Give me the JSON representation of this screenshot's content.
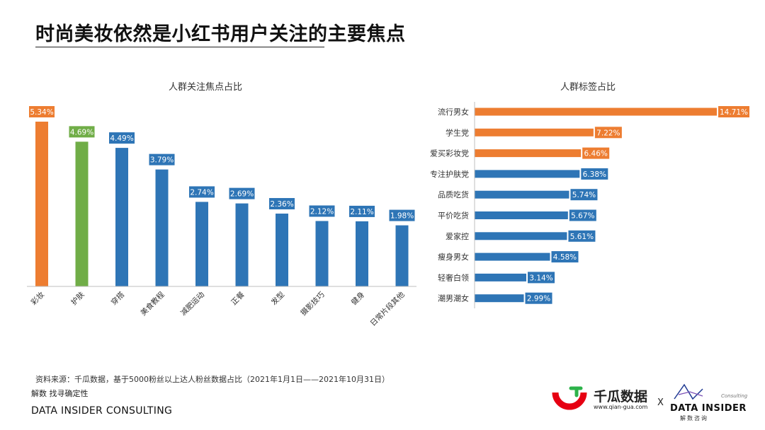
{
  "page": {
    "title": "时尚美妆依然是小红书用户关注的主要焦点"
  },
  "chart_data": [
    {
      "type": "bar",
      "title": "人群关注焦点占比",
      "categories": [
        "彩妆",
        "护肤",
        "穿搭",
        "美食教程",
        "减肥运动",
        "正餐",
        "发型",
        "摄影技巧",
        "健身",
        "日常片段其他"
      ],
      "values": [
        5.34,
        4.69,
        4.49,
        3.79,
        2.74,
        2.69,
        2.36,
        2.12,
        2.11,
        1.98
      ],
      "value_labels": [
        "5.34%",
        "4.69%",
        "4.49%",
        "3.79%",
        "2.74%",
        "2.69%",
        "2.36%",
        "2.12%",
        "2.11%",
        "1.98%"
      ],
      "colors": [
        "#ED7D31",
        "#70AD47",
        "#2E75B6",
        "#2E75B6",
        "#2E75B6",
        "#2E75B6",
        "#2E75B6",
        "#2E75B6",
        "#2E75B6",
        "#2E75B6"
      ],
      "unit": "%",
      "ylim": [
        0,
        5.5
      ],
      "grid": false
    },
    {
      "type": "bar",
      "orientation": "horizontal",
      "title": "人群标签占比",
      "categories": [
        "流行男女",
        "学生党",
        "爱买彩妆党",
        "专注护肤党",
        "品质吃货",
        "平价吃货",
        "爱家控",
        "瘦身男女",
        "轻奢白领",
        "潮男潮女"
      ],
      "values": [
        14.71,
        7.22,
        6.46,
        6.38,
        5.74,
        5.67,
        5.61,
        4.58,
        3.14,
        2.99
      ],
      "value_labels": [
        "14.71%",
        "7.22%",
        "6.46%",
        "6.38%",
        "5.74%",
        "5.67%",
        "5.61%",
        "4.58%",
        "3.14%",
        "2.99%"
      ],
      "colors": [
        "#ED7D31",
        "#ED7D31",
        "#ED7D31",
        "#2E75B6",
        "#2E75B6",
        "#2E75B6",
        "#2E75B6",
        "#2E75B6",
        "#2E75B6",
        "#2E75B6"
      ],
      "unit": "%",
      "xlim": [
        0,
        14.71
      ],
      "grid": false
    }
  ],
  "footer": {
    "source": "资料来源：千瓜数据，基于5000粉丝以上达人粉丝数据占比（2021年1月1日——2021年10月31日）",
    "tagline": "解数 找寻确定性",
    "company": "DATA INSIDER CONSULTING"
  },
  "logos": {
    "qiangua_name": "千瓜数据",
    "qiangua_url": "www.qian-gua.com",
    "separator": "X",
    "di_consulting": "Consulting",
    "di_name": "DATA INSIDER",
    "di_sub": "解数咨询"
  }
}
